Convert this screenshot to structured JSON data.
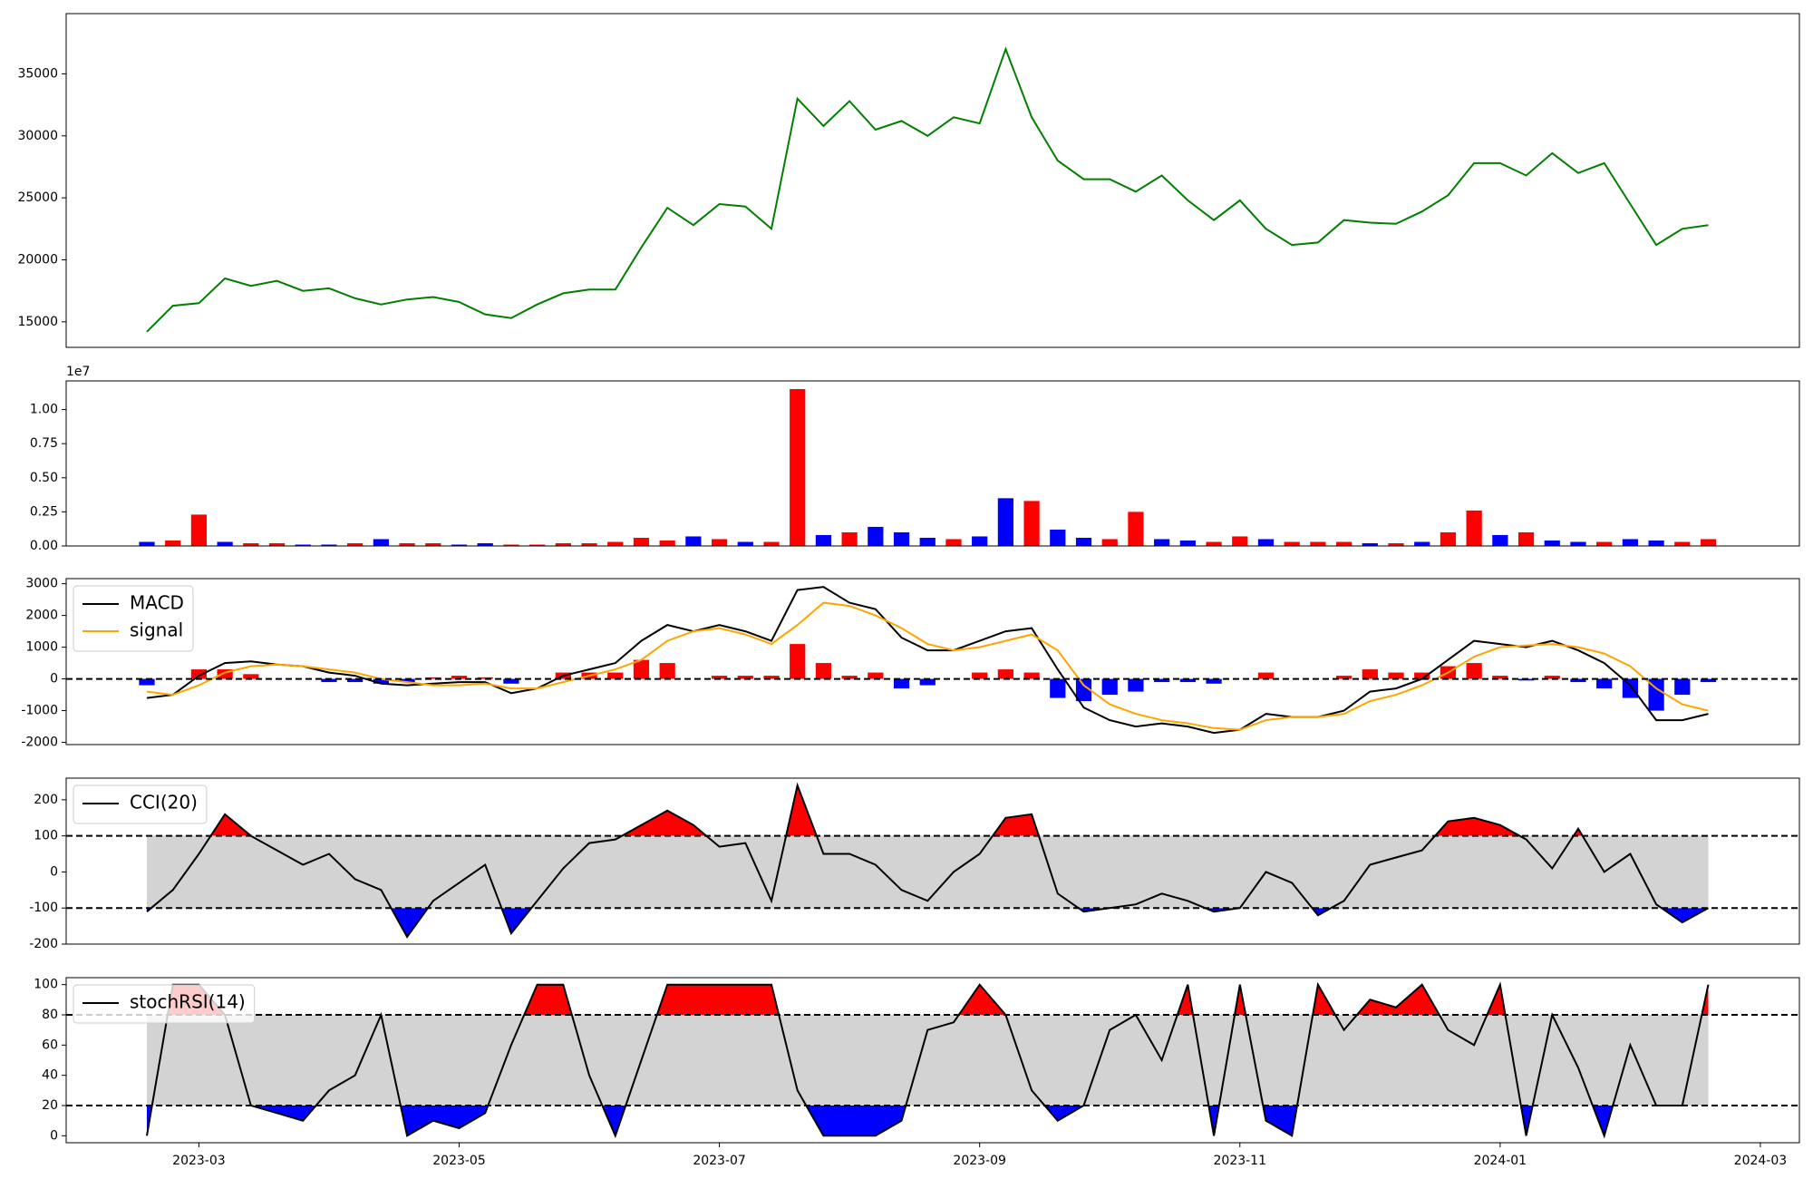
{
  "chart_data": [
    {
      "type": "line",
      "x": [
        2.6,
        2.8,
        3.0,
        3.2,
        3.4,
        3.6,
        3.8,
        4.0,
        4.2,
        4.4,
        4.6,
        4.8,
        5.0,
        5.2,
        5.4,
        5.6,
        5.8,
        6.0,
        6.2,
        6.4,
        6.6,
        6.8,
        7.0,
        7.2,
        7.4,
        7.6,
        7.8,
        8.0,
        8.2,
        8.4,
        8.6,
        8.8,
        9.0,
        9.2,
        9.4,
        9.6,
        9.8,
        10.0,
        10.2,
        10.4,
        10.6,
        10.8,
        11.0,
        11.2,
        11.4,
        11.6,
        11.8,
        12.0,
        12.2,
        12.4,
        12.6,
        12.8,
        13.0,
        13.2,
        13.4,
        13.6,
        13.8,
        14.0,
        14.2,
        14.4,
        14.6
      ],
      "xlim": [
        1.98,
        15.3
      ],
      "ylim": [
        12940,
        39860
      ],
      "yticks": [
        15000,
        20000,
        25000,
        30000,
        35000
      ],
      "series": [
        {
          "color": "green",
          "values": [
            14200,
            16300,
            16500,
            18500,
            17900,
            18300,
            17500,
            17700,
            16900,
            16400,
            16800,
            17000,
            16600,
            15600,
            15300,
            16400,
            17300,
            17600,
            17600,
            21000,
            24200,
            22800,
            24500,
            24300,
            22500,
            33000,
            30800,
            32800,
            30500,
            31200,
            30000,
            31500,
            31000,
            37000,
            31500,
            28000,
            26500,
            26500,
            25500,
            26800,
            24800,
            23200,
            24800,
            22500,
            21200,
            21400,
            23200,
            23000,
            22900,
            23900,
            25200,
            27800,
            27800,
            26800,
            28600,
            27000,
            27800,
            24500,
            21200,
            22500,
            22800
          ]
        }
      ]
    },
    {
      "type": "bar",
      "offset_label": "1e7",
      "ylim": [
        0,
        1.21
      ],
      "yticks": [
        {
          "value": 0,
          "label": "0.00"
        },
        {
          "value": 0.25,
          "label": "0.25"
        },
        {
          "value": 0.5,
          "label": "0.50"
        },
        {
          "value": 0.75,
          "label": "0.75"
        },
        {
          "value": 1,
          "label": "1.00"
        }
      ],
      "series": [
        {
          "values": [
            0.03,
            0.04,
            0.23,
            0.03,
            0.02,
            0.02,
            0.01,
            0.01,
            0.02,
            0.05,
            0.02,
            0.02,
            0.01,
            0.02,
            0.01,
            0.01,
            0.02,
            0.02,
            0.03,
            0.06,
            0.04,
            0.07,
            0.05,
            0.03,
            0.03,
            1.15,
            0.08,
            0.1,
            0.14,
            0.1,
            0.06,
            0.05,
            0.07,
            0.35,
            0.33,
            0.12,
            0.06,
            0.05,
            0.25,
            0.05,
            0.04,
            0.03,
            0.07,
            0.05,
            0.03,
            0.03,
            0.03,
            0.02,
            0.02,
            0.03,
            0.1,
            0.26,
            0.08,
            0.1,
            0.04,
            0.03,
            0.03,
            0.05,
            0.04,
            0.03,
            0.05
          ],
          "colors": [
            "blue",
            "red",
            "red",
            "blue",
            "red",
            "red",
            "blue",
            "blue",
            "red",
            "blue",
            "red",
            "red",
            "blue",
            "blue",
            "red",
            "red",
            "red",
            "red",
            "red",
            "red",
            "red",
            "blue",
            "red",
            "blue",
            "red",
            "red",
            "blue",
            "red",
            "blue",
            "blue",
            "blue",
            "red",
            "blue",
            "blue",
            "red",
            "blue",
            "blue",
            "red",
            "red",
            "blue",
            "blue",
            "red",
            "red",
            "blue",
            "red",
            "red",
            "red",
            "blue",
            "red",
            "blue",
            "red",
            "red",
            "blue",
            "red",
            "blue",
            "blue",
            "red",
            "blue",
            "blue",
            "red",
            "red"
          ]
        }
      ]
    },
    {
      "type": "line",
      "legend": "upper left",
      "ylim": [
        -2070,
        3160
      ],
      "yticks": [
        -2000,
        -1000,
        0,
        1000,
        2000,
        3000
      ],
      "hlines": [
        0
      ],
      "positive_color": "red",
      "negative_color": "blue",
      "series": [
        {
          "name": "MACD",
          "color": "black",
          "values": [
            -600,
            -500,
            100,
            500,
            550,
            450,
            400,
            200,
            100,
            -150,
            -200,
            -150,
            -100,
            -100,
            -450,
            -300,
            100,
            300,
            500,
            1200,
            1700,
            1500,
            1700,
            1500,
            1200,
            2800,
            2900,
            2400,
            2200,
            1300,
            900,
            900,
            1200,
            1500,
            1600,
            300,
            -900,
            -1300,
            -1500,
            -1400,
            -1500,
            -1700,
            -1600,
            -1100,
            -1200,
            -1200,
            -1000,
            -400,
            -300,
            0,
            600,
            1200,
            1100,
            1000,
            1200,
            900,
            500,
            -200,
            -1300,
            -1300,
            -1100
          ]
        },
        {
          "name": "signal",
          "color": "orange",
          "values": [
            -400,
            -500,
            -200,
            200,
            400,
            450,
            400,
            300,
            200,
            0,
            -100,
            -200,
            -200,
            -150,
            -300,
            -300,
            -100,
            100,
            300,
            600,
            1200,
            1500,
            1600,
            1400,
            1100,
            1700,
            2400,
            2300,
            2000,
            1600,
            1100,
            900,
            1000,
            1200,
            1400,
            900,
            -200,
            -800,
            -1100,
            -1300,
            -1400,
            -1550,
            -1600,
            -1300,
            -1200,
            -1200,
            -1100,
            -700,
            -500,
            -200,
            200,
            700,
            1000,
            1050,
            1100,
            1000,
            800,
            400,
            -300,
            -800,
            -1000
          ]
        },
        {
          "style": "bar",
          "values": [
            -200,
            0,
            300,
            300,
            150,
            0,
            0,
            -100,
            -100,
            -150,
            -100,
            50,
            100,
            50,
            -150,
            0,
            200,
            200,
            200,
            600,
            500,
            0,
            100,
            100,
            100,
            1100,
            500,
            100,
            200,
            -300,
            -200,
            0,
            200,
            300,
            200,
            -600,
            -700,
            -500,
            -400,
            -100,
            -100,
            -150,
            0,
            200,
            0,
            0,
            100,
            300,
            200,
            200,
            400,
            500,
            100,
            -50,
            100,
            -100,
            -300,
            -600,
            -1000,
            -500,
            -100
          ]
        }
      ]
    },
    {
      "type": "line",
      "legend": "upper left",
      "ylim": [
        -200,
        260
      ],
      "yticks": [
        -200,
        -100,
        0,
        100,
        200
      ],
      "bands": [
        -100,
        100
      ],
      "band_color": "lightgray",
      "above_color": "red",
      "below_color": "blue",
      "series": [
        {
          "name": "CCI(20)",
          "color": "black",
          "values": [
            -110,
            -50,
            50,
            160,
            100,
            60,
            20,
            50,
            -20,
            -50,
            -180,
            -80,
            -30,
            20,
            -170,
            -80,
            10,
            80,
            90,
            130,
            170,
            130,
            70,
            80,
            -80,
            240,
            50,
            50,
            20,
            -50,
            -80,
            0,
            50,
            150,
            160,
            -60,
            -110,
            -100,
            -90,
            -60,
            -80,
            -110,
            -100,
            0,
            -30,
            -120,
            -80,
            20,
            40,
            60,
            140,
            150,
            130,
            90,
            10,
            120,
            0,
            50,
            -90,
            -140,
            -100
          ]
        }
      ]
    },
    {
      "type": "line",
      "legend": "upper left",
      "ylim": [
        -4.6,
        104.6
      ],
      "yticks": [
        0,
        20,
        40,
        60,
        80,
        100
      ],
      "bands": [
        20,
        80
      ],
      "band_color": "lightgray",
      "above_color": "red",
      "below_color": "blue",
      "xticks": [
        {
          "value": 3,
          "label": "2023-03"
        },
        {
          "value": 5,
          "label": "2023-05"
        },
        {
          "value": 7,
          "label": "2023-07"
        },
        {
          "value": 9,
          "label": "2023-09"
        },
        {
          "value": 11,
          "label": "2023-11"
        },
        {
          "value": 13,
          "label": "2024-01"
        },
        {
          "value": 15,
          "label": "2024-03"
        }
      ],
      "series": [
        {
          "name": "stochRSI(14)",
          "color": "black",
          "values": [
            0,
            100,
            100,
            80,
            20,
            15,
            10,
            30,
            40,
            80,
            0,
            10,
            5,
            15,
            60,
            100,
            100,
            40,
            0,
            50,
            100,
            100,
            100,
            100,
            100,
            30,
            0,
            0,
            0,
            10,
            70,
            75,
            100,
            80,
            30,
            10,
            20,
            70,
            80,
            50,
            100,
            0,
            100,
            10,
            0,
            100,
            70,
            90,
            85,
            100,
            70,
            60,
            100,
            0,
            80,
            45,
            0,
            60,
            20,
            20,
            100
          ]
        }
      ]
    }
  ]
}
